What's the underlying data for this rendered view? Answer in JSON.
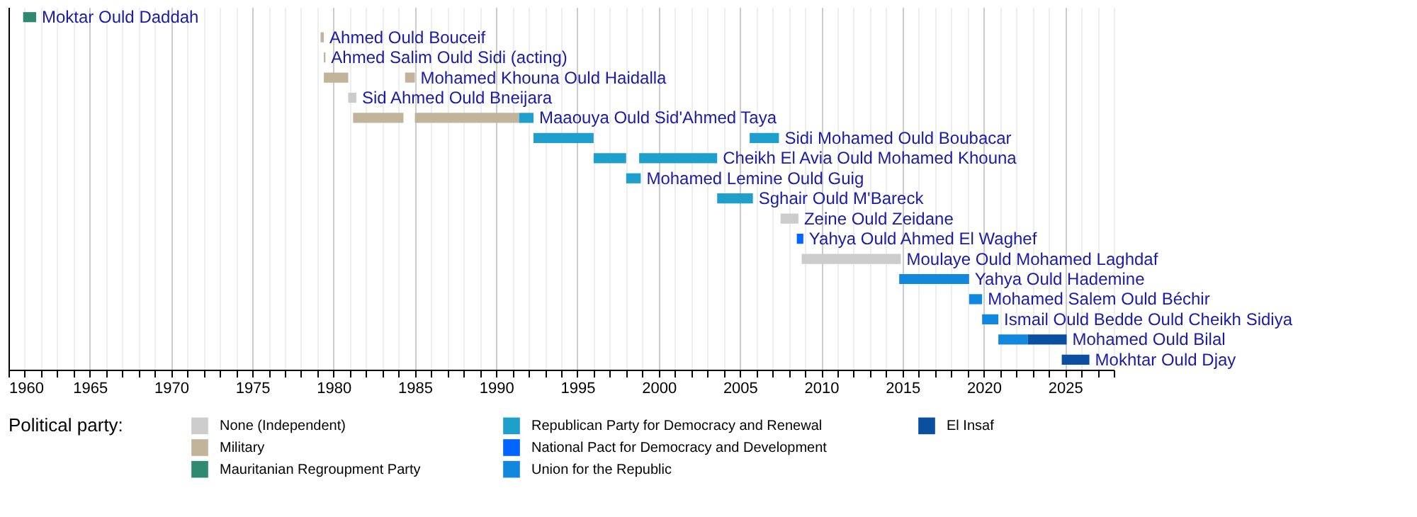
{
  "chart_data": {
    "type": "bar",
    "orientation": "horizontal",
    "legend": "bottom",
    "legend_title": "Political party:",
    "grid": "x",
    "tick_labels": "x",
    "categories": [
      "Moktar Ould Daddah",
      "Ahmed Ould Bouceif",
      "Ahmed Salim Ould Sidi (acting)",
      "Mohamed Khouna Ould Haidalla",
      "Sid Ahmed Ould Bneijara",
      "Maaouya Ould Sid'Ahmed Taya",
      "Sidi Mohamed Ould Boubacar",
      "Cheikh El Avia Ould Mohamed Khouna",
      "Mohamed Lemine Ould Guig",
      "Sghair Ould M'Bareck",
      "Zeine Ould Zeidane",
      "Yahya Ould Ahmed El Waghef",
      "Moulaye Ould Mohamed Laghdaf",
      "Yahya Ould Hademine",
      "Mohamed Salem Ould Béchir",
      "Ismail Ould Bedde Ould Cheikh Sidiya",
      "Mohamed Ould Bilal",
      "Mokhtar Ould Djay"
    ],
    "xlim": [
      1960,
      2028
    ],
    "xticks": [
      1960,
      {
        "value": 1961,
        "label": null
      },
      {
        "value": 1962,
        "label": null
      },
      {
        "value": 1963,
        "label": null
      },
      {
        "value": 1964,
        "label": null
      },
      1965,
      {
        "value": 1966,
        "label": null
      },
      {
        "value": 1967,
        "label": null
      },
      {
        "value": 1968,
        "label": null
      },
      {
        "value": 1969,
        "label": null
      },
      1970,
      {
        "value": 1971,
        "label": null
      },
      {
        "value": 1972,
        "label": null
      },
      {
        "value": 1973,
        "label": null
      },
      {
        "value": 1974,
        "label": null
      },
      1975,
      {
        "value": 1976,
        "label": null
      },
      {
        "value": 1977,
        "label": null
      },
      {
        "value": 1978,
        "label": null
      },
      {
        "value": 1979,
        "label": null
      },
      1980,
      {
        "value": 1981,
        "label": null
      },
      {
        "value": 1982,
        "label": null
      },
      {
        "value": 1983,
        "label": null
      },
      {
        "value": 1984,
        "label": null
      },
      1985,
      {
        "value": 1986,
        "label": null
      },
      {
        "value": 1987,
        "label": null
      },
      {
        "value": 1988,
        "label": null
      },
      {
        "value": 1989,
        "label": null
      },
      1990,
      {
        "value": 1991,
        "label": null
      },
      {
        "value": 1992,
        "label": null
      },
      {
        "value": 1993,
        "label": null
      },
      {
        "value": 1994,
        "label": null
      },
      1995,
      {
        "value": 1996,
        "label": null
      },
      {
        "value": 1997,
        "label": null
      },
      {
        "value": 1998,
        "label": null
      },
      {
        "value": 1999,
        "label": null
      },
      2000,
      {
        "value": 2001,
        "label": null
      },
      {
        "value": 2002,
        "label": null
      },
      {
        "value": 2003,
        "label": null
      },
      {
        "value": 2004,
        "label": null
      },
      2005,
      {
        "value": 2006,
        "label": null
      },
      {
        "value": 2007,
        "label": null
      },
      {
        "value": 2008,
        "label": null
      },
      {
        "value": 2009,
        "label": null
      },
      2010,
      {
        "value": 2011,
        "label": null
      },
      {
        "value": 2012,
        "label": null
      },
      {
        "value": 2013,
        "label": null
      },
      {
        "value": 2014,
        "label": null
      },
      2015,
      {
        "value": 2016,
        "label": null
      },
      {
        "value": 2017,
        "label": null
      },
      {
        "value": 2018,
        "label": null
      },
      {
        "value": 2019,
        "label": null
      },
      2020,
      {
        "value": 2021,
        "label": null
      },
      {
        "value": 2022,
        "label": null
      },
      {
        "value": 2023,
        "label": null
      },
      {
        "value": 2024,
        "label": null
      },
      2025,
      {
        "value": 2026,
        "label": null
      },
      {
        "value": 2027,
        "label": null
      },
      {
        "value": 2028,
        "label": null
      }
    ],
    "series": [
      {
        "name": "None (Independent)",
        "color": "#cccccc",
        "values": [
          null,
          null,
          null,
          null,
          0.5,
          null,
          null,
          null,
          null,
          null,
          1.1,
          null,
          6.1,
          null,
          null,
          null,
          null,
          null
        ],
        "base": [
          null,
          null,
          null,
          null,
          1980.9,
          null,
          null,
          null,
          null,
          null,
          2007.5,
          null,
          2008.8,
          null,
          null,
          null,
          null,
          null
        ]
      },
      {
        "name": "Military",
        "color": "#c2b49a",
        "values": [
          null,
          0.2,
          0.1,
          1.5,
          null,
          3.1,
          null,
          null,
          null,
          null,
          null,
          null,
          null,
          null,
          null,
          null,
          null,
          null
        ],
        "base": [
          null,
          1979.2,
          1979.4,
          1979.4,
          null,
          1981.2,
          null,
          null,
          null,
          null,
          null,
          null,
          null,
          null,
          null,
          null,
          null,
          null
        ]
      },
      {
        "name": "Mauritanian Regroupment Party",
        "color": "#2e8b70",
        "values": [
          0.8,
          null,
          null,
          null,
          null,
          null,
          null,
          null,
          null,
          null,
          null,
          null,
          null,
          null,
          null,
          null,
          null,
          null
        ],
        "base": [
          1960.9,
          null,
          null,
          null,
          null,
          null,
          null,
          null,
          null,
          null,
          null,
          null,
          null,
          null,
          null,
          null,
          null,
          null
        ]
      },
      {
        "name": "Republican Party for Democracy and Renewal",
        "color": "#1fa0cc",
        "values": [
          null,
          null,
          null,
          null,
          null,
          0.9,
          3.7,
          2.0,
          0.9,
          2.2,
          null,
          null,
          null,
          null,
          null,
          null,
          null,
          null
        ],
        "base": [
          null,
          null,
          null,
          null,
          null,
          1991.4,
          1992.3,
          1996.0,
          1998.0,
          2003.6,
          null,
          null,
          null,
          null,
          null,
          null,
          null,
          null
        ]
      },
      {
        "name": "National Pact for Democracy and Development",
        "color": "#0066ff",
        "values": [
          null,
          null,
          null,
          null,
          null,
          null,
          null,
          null,
          null,
          null,
          null,
          0.4,
          null,
          null,
          null,
          null,
          null,
          null
        ],
        "base": [
          null,
          null,
          null,
          null,
          null,
          null,
          null,
          null,
          null,
          null,
          null,
          2008.5,
          null,
          null,
          null,
          null,
          null,
          null
        ]
      },
      {
        "name": "Union for the Republic",
        "color": "#1188dd",
        "values": [
          null,
          null,
          null,
          null,
          null,
          null,
          null,
          null,
          null,
          null,
          null,
          null,
          null,
          4.3,
          0.8,
          1.0,
          1.8,
          null
        ],
        "base": [
          null,
          null,
          null,
          null,
          null,
          null,
          null,
          null,
          null,
          null,
          null,
          null,
          null,
          2014.8,
          2019.1,
          2019.9,
          2020.9,
          null
        ]
      },
      {
        "name": "El Insaf",
        "color": "#0b4fa0",
        "values": [
          null,
          null,
          null,
          null,
          null,
          null,
          null,
          null,
          null,
          null,
          null,
          null,
          null,
          null,
          null,
          null,
          2.4,
          1.7
        ],
        "base": [
          null,
          null,
          null,
          null,
          null,
          null,
          null,
          null,
          null,
          null,
          null,
          null,
          null,
          null,
          null,
          null,
          2022.7,
          2024.8
        ]
      },
      {
        "color": "#c2b49a",
        "values": [
          null,
          null,
          null,
          0.6,
          null,
          6.4,
          null,
          null,
          null,
          null,
          null,
          null,
          null,
          null,
          null,
          null,
          null,
          null
        ],
        "base": [
          null,
          null,
          null,
          1984.4,
          null,
          1985.0,
          null,
          null,
          null,
          null,
          null,
          null,
          null,
          null,
          null,
          null,
          null,
          null
        ]
      },
      {
        "color": "#1fa0cc",
        "values": [
          null,
          null,
          null,
          null,
          null,
          null,
          1.8,
          4.8,
          null,
          null,
          null,
          null,
          null,
          null,
          null,
          null,
          null,
          null
        ],
        "base": [
          null,
          null,
          null,
          null,
          null,
          null,
          2005.6,
          1998.8,
          null,
          null,
          null,
          null,
          null,
          null,
          null,
          null,
          null,
          null
        ]
      }
    ]
  }
}
